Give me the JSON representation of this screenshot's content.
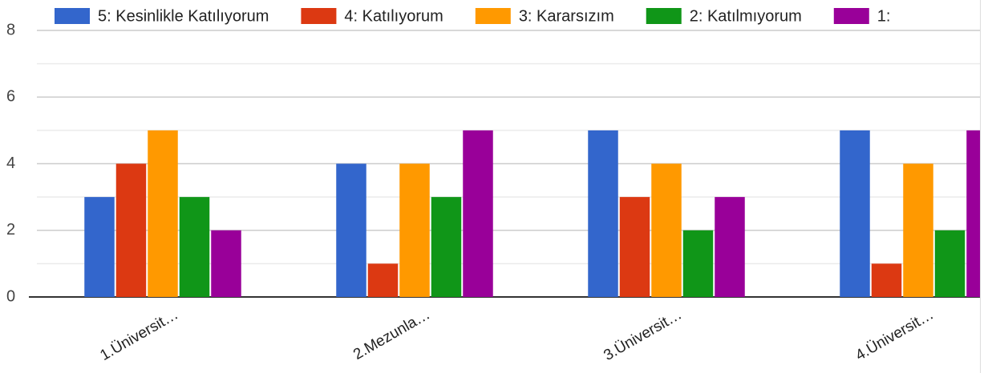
{
  "chart_data": {
    "type": "bar",
    "categories": [
      "1.Üniversit…",
      "2.Mezunla…",
      "3.Üniversit…",
      "4.Üniversit…"
    ],
    "series": [
      {
        "name": "5: Kesinlikle Katılıyorum",
        "color": "#3366cc",
        "values": [
          3,
          4,
          5,
          5
        ]
      },
      {
        "name": "4: Katılıyorum",
        "color": "#dc3912",
        "values": [
          4,
          1,
          3,
          1
        ]
      },
      {
        "name": "3: Kararsızım",
        "color": "#ff9900",
        "values": [
          5,
          4,
          4,
          4
        ]
      },
      {
        "name": "2: Katılmıyorum",
        "color": "#109618",
        "values": [
          3,
          3,
          2,
          2
        ]
      },
      {
        "name": "1:",
        "color": "#990099",
        "values": [
          2,
          5,
          3,
          5
        ]
      }
    ],
    "ylim": [
      0,
      8
    ],
    "yticks": [
      0,
      2,
      4,
      6,
      8
    ],
    "yminorticks": [
      1,
      3,
      5,
      7
    ],
    "grid": true,
    "legend": "top"
  }
}
